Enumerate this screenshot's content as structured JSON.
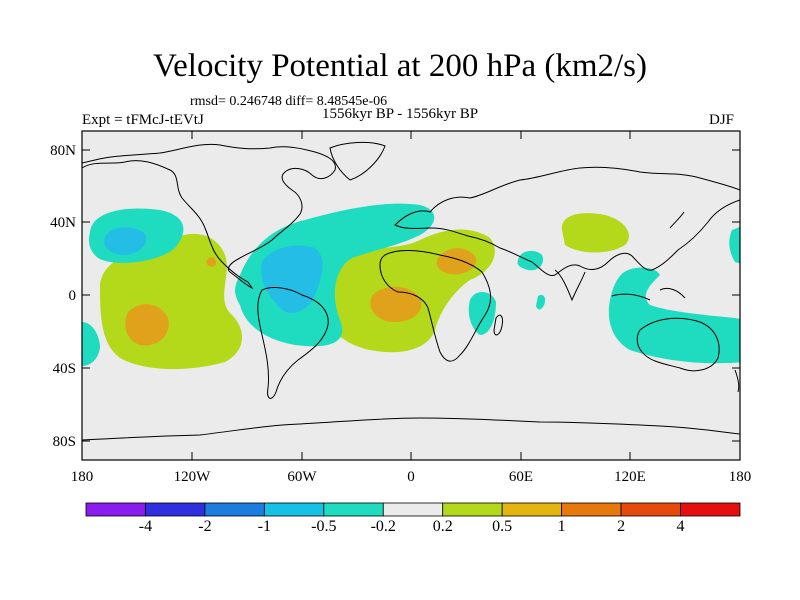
{
  "title": "Velocity Potential at 200 hPa (km2/s)",
  "stats_line": "rmsd= 0.246748 diff= 8.48545e-06",
  "left_label": "Expt = tFMcJ-tEVtJ",
  "center_label": "1556kyr BP - 1556kyr BP",
  "right_label": "DJF",
  "map": {
    "lat_ticks": [
      "80N",
      "40N",
      "0",
      "40S",
      "80S"
    ],
    "lon_ticks": [
      "180",
      "120W",
      "60W",
      "0",
      "60E",
      "120E",
      "180"
    ]
  },
  "colorbar": {
    "labels": [
      "-4",
      "-2",
      "-1",
      "-0.5",
      "-0.2",
      "0.2",
      "0.5",
      "1",
      "2",
      "4"
    ],
    "colors": [
      "#8a1cf0",
      "#2f2fe0",
      "#1c7ce0",
      "#17c1e6",
      "#1fdcc0",
      "#ebebeb",
      "#b4d81a",
      "#e6b40f",
      "#e6780c",
      "#e64a0a",
      "#e60f0f"
    ]
  },
  "palette": {
    "ocean": "#ebebeb",
    "pos_02_05": "#b4d81a",
    "pos_05_1": "#e0a21a",
    "neg_02_05": "#1fdcc0",
    "neg_05_1": "#24bde6"
  }
}
